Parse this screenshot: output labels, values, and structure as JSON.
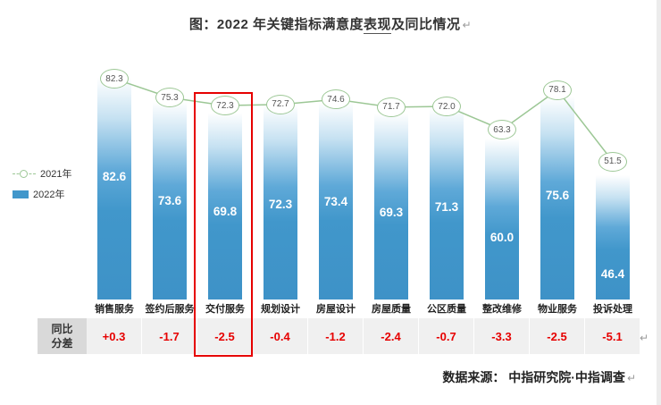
{
  "title": {
    "prefix": "图：2022 年关键指标满意度",
    "underlined": "表现",
    "suffix": "及同比情况",
    "return_mark": "↵"
  },
  "legend": {
    "line_label": "2021年",
    "bar_label": "2022年"
  },
  "chart_data": {
    "type": "bar+line",
    "title": "2022 年关键指标满意度表现及同比情况",
    "categories": [
      "销售服务",
      "签约后服务",
      "交付服务",
      "规划设计",
      "房屋设计",
      "房屋质量",
      "公区质量",
      "整改维修",
      "物业服务",
      "投诉处理"
    ],
    "series": [
      {
        "name": "2021年",
        "type": "line",
        "values": [
          82.3,
          75.3,
          72.3,
          72.7,
          74.6,
          71.7,
          72.0,
          63.3,
          78.1,
          51.5
        ]
      },
      {
        "name": "2022年",
        "type": "bar",
        "values": [
          82.6,
          73.6,
          69.8,
          72.3,
          73.4,
          69.3,
          71.3,
          60.0,
          75.6,
          46.4
        ]
      }
    ],
    "highlight_category": "交付服务",
    "ylim": [
      0,
      90
    ],
    "legend_position": "left",
    "grid": false,
    "colors": {
      "bar": "#4197cb",
      "line": "#9cc795",
      "diff_text": "#e60000",
      "highlight_box": "#e60000"
    }
  },
  "diff_table": {
    "header_line1": "同比",
    "header_line2": "分差",
    "values": [
      "+0.3",
      "-1.7",
      "-2.5",
      "-0.4",
      "-1.2",
      "-2.4",
      "-0.7",
      "-3.3",
      "-2.5",
      "-5.1"
    ],
    "return_mark": "↵"
  },
  "source": {
    "label": "数据来源： 中指研究院·中指调查",
    "return_mark": "↵"
  }
}
